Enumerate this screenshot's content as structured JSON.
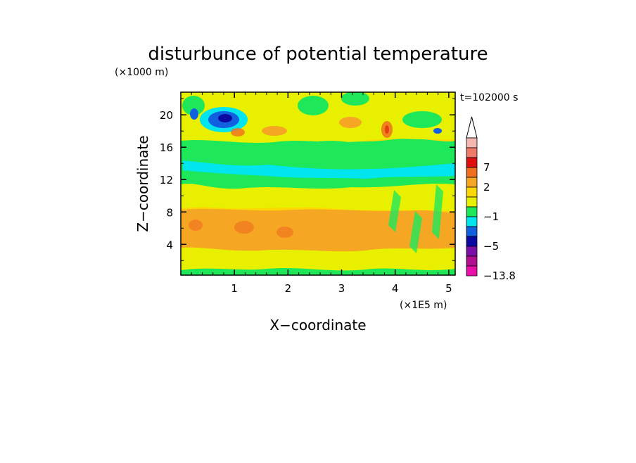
{
  "chart_data": {
    "type": "heatmap",
    "title": "disturbunce of potential temperature",
    "xlabel": "X−coordinate",
    "ylabel": "Z−coordinate",
    "x_unit": "(×1E5 m)",
    "y_unit": "(×1000 m)",
    "time_label": "t=102000 s",
    "xlim": [
      0,
      5.12
    ],
    "ylim": [
      0.2,
      22.8
    ],
    "x_ticks": [
      "1",
      "2",
      "3",
      "4",
      "5"
    ],
    "y_ticks": [
      "4",
      "8",
      "12",
      "16",
      "20"
    ],
    "colorbar": {
      "labels": [
        "7",
        "2",
        "−1",
        "−5",
        "−13.8"
      ],
      "colors": [
        "#f5b8b0",
        "#ee7a6a",
        "#dd1010",
        "#f07020",
        "#f5a623",
        "#ffd700",
        "#e8f000",
        "#1ee85a",
        "#00e5ee",
        "#1060e0",
        "#0a0aa0",
        "#7a10a8",
        "#b01090",
        "#e810a8"
      ]
    },
    "features": [
      {
        "x": 2.5,
        "y": 6.2,
        "level": "2"
      },
      {
        "x": 2.5,
        "y": 10.3,
        "level": "0"
      },
      {
        "x": 3.0,
        "y": 13.5,
        "level": "−1"
      },
      {
        "x": 0.8,
        "y": 19.0,
        "level": "−5"
      },
      {
        "x": 3.85,
        "y": 18.2,
        "level": "7"
      }
    ]
  }
}
